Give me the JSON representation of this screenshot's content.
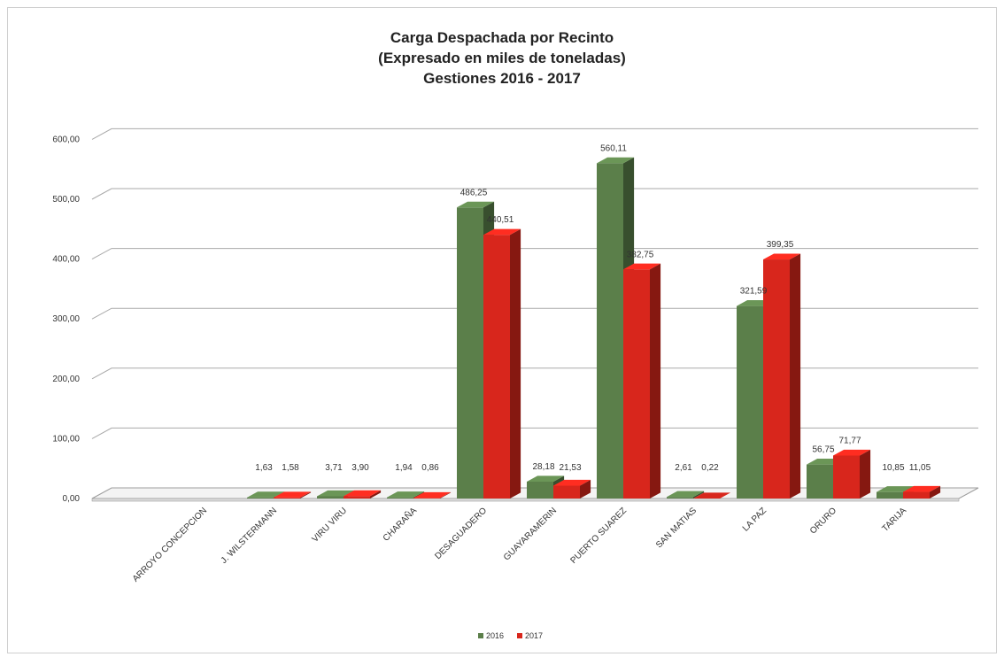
{
  "chart_data": {
    "type": "bar",
    "title_lines": [
      "Carga Despachada por Recinto",
      "(Expresado en miles de toneladas)",
      "Gestiones 2016 - 2017"
    ],
    "categories": [
      "ARROYO CONCEPCION",
      "J. WILSTERMANN",
      "VIRU VIRU",
      "CHARAÑA",
      "DESAGUADERO",
      "GUAYARAMERIN",
      "PUERTO SUAREZ",
      "SAN MATIAS",
      "LA PAZ",
      "ORURO",
      "TARIJA"
    ],
    "series": [
      {
        "name": "2016",
        "color": "#5b7f4a",
        "values": [
          0,
          1.63,
          3.71,
          1.94,
          486.25,
          28.18,
          560.11,
          2.61,
          321.59,
          56.75,
          10.85
        ],
        "labels": [
          "",
          "1,63",
          "3,71",
          "1,94",
          "486,25",
          "28,18",
          "560,11",
          "2,61",
          "321,59",
          "56,75",
          "10,85"
        ]
      },
      {
        "name": "2017",
        "color": "#d8261c",
        "values": [
          0,
          1.58,
          3.9,
          0.86,
          440.51,
          21.53,
          382.75,
          0.22,
          399.35,
          71.77,
          11.05
        ],
        "labels": [
          "",
          "1,58",
          "3,90",
          "0,86",
          "440,51",
          "21,53",
          "382,75",
          "0,22",
          "399,35",
          "71,77",
          "11,05"
        ]
      }
    ],
    "ylim": [
      0,
      600
    ],
    "yticks": [
      0,
      100,
      200,
      300,
      400,
      500,
      600
    ],
    "ytick_labels": [
      "0,00",
      "100,00",
      "200,00",
      "300,00",
      "400,00",
      "500,00",
      "600,00"
    ],
    "grid": true,
    "legend_position": "bottom-center",
    "style": "3d-column"
  }
}
